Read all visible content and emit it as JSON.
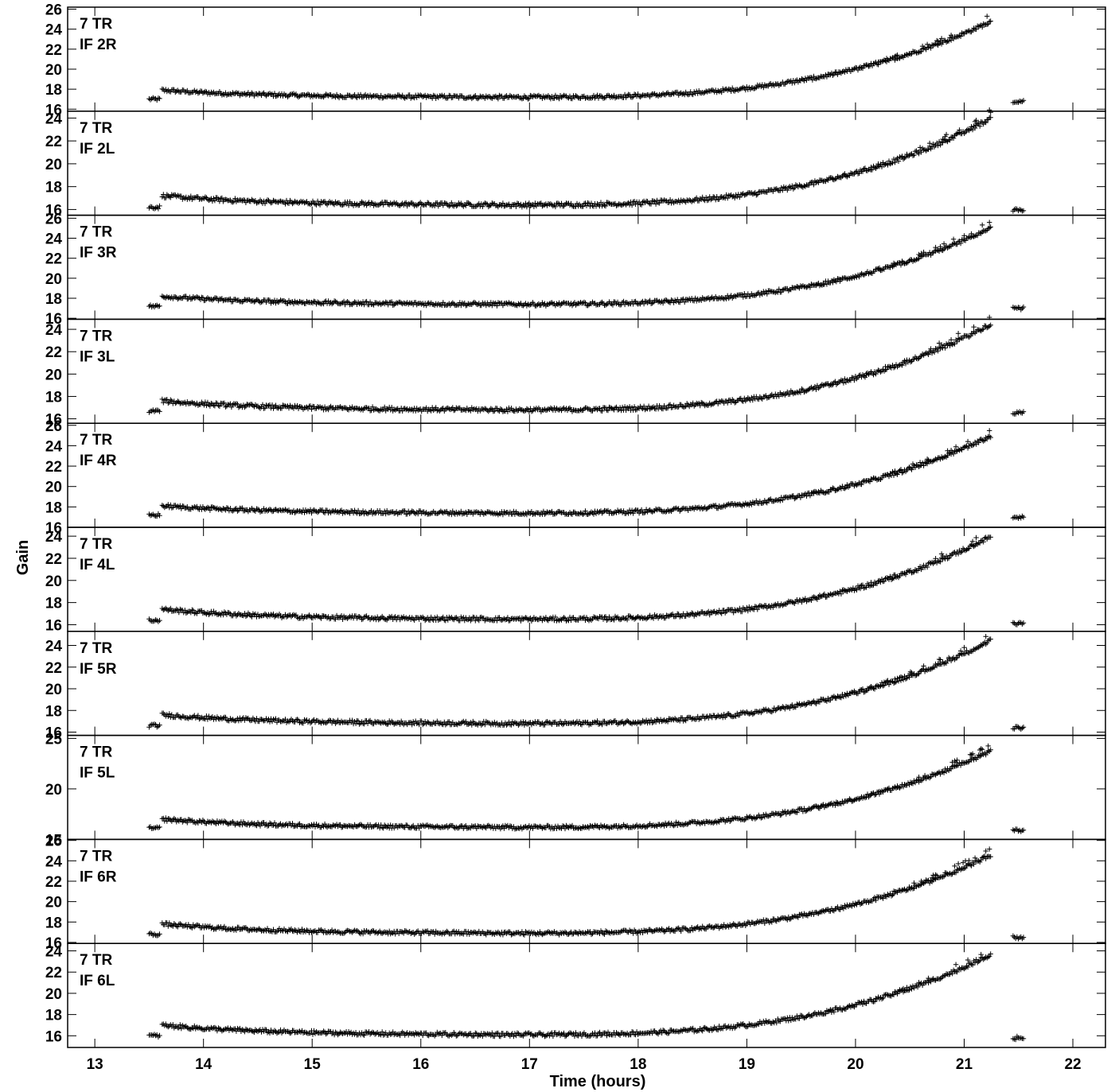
{
  "chart_data": {
    "type": "scatter",
    "title": "",
    "xlabel": "Time (hours)",
    "ylabel": "Gain",
    "xlim": [
      12.75,
      22.3
    ],
    "x_ticks": [
      13,
      14,
      15,
      16,
      17,
      18,
      19,
      20,
      21,
      22
    ],
    "marker": "plus",
    "grid": false,
    "panels": [
      {
        "label_line1": "7 TR",
        "label_line2": "IF 2R",
        "ylim": [
          15.8,
          26.2
        ],
        "y_ticks": [
          16,
          18,
          20,
          22,
          24,
          26
        ],
        "model": {
          "first_scan": 17.0,
          "start": 17.9,
          "min": 17.2,
          "end": 24.8,
          "last_scan": 16.8
        }
      },
      {
        "label_line1": "7 TR",
        "label_line2": "IF 2L",
        "ylim": [
          15.5,
          24.6
        ],
        "y_ticks": [
          16,
          18,
          20,
          22,
          24
        ],
        "model": {
          "first_scan": 16.2,
          "start": 17.2,
          "min": 16.4,
          "end": 24.0,
          "last_scan": 16.0
        }
      },
      {
        "label_line1": "7 TR",
        "label_line2": "IF 3R",
        "ylim": [
          15.9,
          26.3
        ],
        "y_ticks": [
          16,
          18,
          20,
          22,
          24,
          26
        ],
        "model": {
          "first_scan": 17.2,
          "start": 18.2,
          "min": 17.4,
          "end": 25.0,
          "last_scan": 17.0
        }
      },
      {
        "label_line1": "7 TR",
        "label_line2": "IF 3L",
        "ylim": [
          15.6,
          24.9
        ],
        "y_ticks": [
          16,
          18,
          20,
          22,
          24
        ],
        "model": {
          "first_scan": 16.7,
          "start": 17.6,
          "min": 16.8,
          "end": 24.5,
          "last_scan": 16.5
        }
      },
      {
        "label_line1": "7 TR",
        "label_line2": "IF 4R",
        "ylim": [
          16.0,
          26.2
        ],
        "y_ticks": [
          16,
          18,
          20,
          22,
          24,
          26
        ],
        "model": {
          "first_scan": 17.2,
          "start": 18.1,
          "min": 17.4,
          "end": 25.0,
          "last_scan": 17.0
        }
      },
      {
        "label_line1": "7 TR",
        "label_line2": "IF 4L",
        "ylim": [
          15.4,
          24.8
        ],
        "y_ticks": [
          16,
          18,
          20,
          22,
          24
        ],
        "model": {
          "first_scan": 16.4,
          "start": 17.4,
          "min": 16.5,
          "end": 24.0,
          "last_scan": 16.1
        }
      },
      {
        "label_line1": "7 TR",
        "label_line2": "IF 5R",
        "ylim": [
          15.7,
          25.3
        ],
        "y_ticks": [
          16,
          18,
          20,
          22,
          24
        ],
        "model": {
          "first_scan": 16.6,
          "start": 17.6,
          "min": 16.8,
          "end": 24.5,
          "last_scan": 16.4
        }
      },
      {
        "label_line1": "7 TR",
        "label_line2": "IF 5L",
        "ylim": [
          15.0,
          25.3
        ],
        "y_ticks": [
          15,
          20,
          25
        ],
        "model": {
          "first_scan": 16.1,
          "start": 17.0,
          "min": 16.2,
          "end": 23.8,
          "last_scan": 15.9
        }
      },
      {
        "label_line1": "7 TR",
        "label_line2": "IF 6R",
        "ylim": [
          15.9,
          26.1
        ],
        "y_ticks": [
          16,
          18,
          20,
          22,
          24,
          26
        ],
        "model": {
          "first_scan": 16.8,
          "start": 17.8,
          "min": 16.9,
          "end": 24.6,
          "last_scan": 16.5
        }
      },
      {
        "label_line1": "7 TR",
        "label_line2": "IF 6L",
        "ylim": [
          14.9,
          24.7
        ],
        "y_ticks": [
          16,
          18,
          20,
          22,
          24
        ],
        "model": {
          "first_scan": 16.0,
          "start": 17.0,
          "min": 16.1,
          "end": 23.7,
          "last_scan": 15.8
        }
      }
    ],
    "time_ranges": {
      "first_scan": [
        13.5,
        13.6
      ],
      "main": [
        13.62,
        21.25
      ],
      "last_scan": [
        21.45,
        21.55
      ]
    }
  }
}
